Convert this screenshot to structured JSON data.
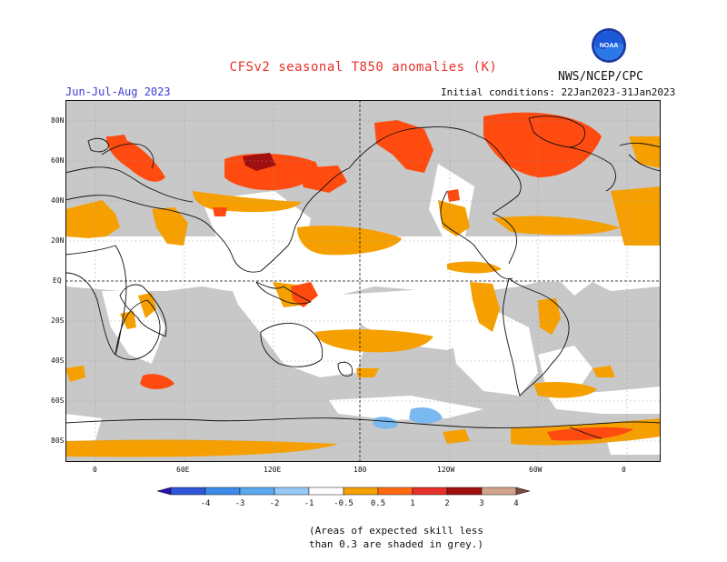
{
  "header": {
    "title": "CFSv2 seasonal T850 anomalies (K)",
    "season": "Jun-Jul-Aug 2023",
    "initial_conditions": "Initial conditions: 22Jan2023-31Jan2023",
    "agency": "NWS/NCEP/CPC",
    "logo_text": "NOAA"
  },
  "axes": {
    "lat_labels": [
      "80N",
      "60N",
      "40N",
      "20N",
      "EQ",
      "20S",
      "40S",
      "60S",
      "80S"
    ],
    "lon_labels": [
      "0",
      "60E",
      "120E",
      "180",
      "120W",
      "60W",
      "0"
    ]
  },
  "colorbar": {
    "ticks": [
      "-4",
      "-3",
      "-2",
      "-1",
      "-0.5",
      "0.5",
      "1",
      "2",
      "3",
      "4"
    ],
    "colors": [
      "#2a14b0",
      "#2f55d8",
      "#3c8ae8",
      "#5aa8f0",
      "#96c8f8",
      "#ffffff",
      "#f5a000",
      "#ff6a10",
      "#e8302a",
      "#a01010",
      "#d2a38c",
      "#7a4a3a"
    ]
  },
  "colors": {
    "grey_low_skill": "#c8c8c8",
    "anomaly_05_1": "#f5a000",
    "anomaly_1_2": "#ff4a10",
    "anomaly_2_3": "#a01010",
    "anomaly_neg_05_1": "#7ab8f0"
  },
  "footnote": "(Areas of expected skill less\nthan 0.3 are shaded in grey.)"
}
